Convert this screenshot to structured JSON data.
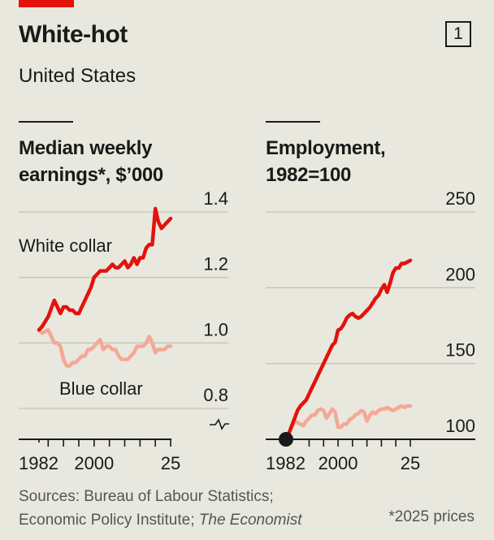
{
  "header": {
    "title": "White-hot",
    "subtitle": "United States",
    "chart_number": "1"
  },
  "footer": {
    "sources_line1": "Sources: Bureau of Labour Statistics;",
    "sources_line2_prefix": "Economic Policy Institute; ",
    "sources_line2_italic": "The Economist",
    "note": "*2025 prices"
  },
  "colors": {
    "accent": "#e3120b",
    "white_collar": "#e3120b",
    "blue_collar": "#f4a895",
    "background": "#e9e8de",
    "gridline": "#c4c3b8",
    "axis": "#1a1a1a"
  },
  "chart_data": [
    {
      "type": "line",
      "title_line1": "Median weekly",
      "title_line2": "earnings*, $’000",
      "xlabel": "",
      "ylabel": "",
      "xlim": [
        1982,
        2025
      ],
      "ylim": [
        0.8,
        1.4
      ],
      "y_axis_broken": true,
      "grid": true,
      "yticks": [
        1.4,
        1.2,
        1.0,
        0.8
      ],
      "ytick_labels": [
        "1.4",
        "1.2",
        "1.0",
        "0.8"
      ],
      "xtick_labels": [
        {
          "year": 1982,
          "label": "1982"
        },
        {
          "year": 2000,
          "label": "2000"
        },
        {
          "year": 2025,
          "label": "25"
        }
      ],
      "xticks": [
        1982,
        1985,
        1990,
        1995,
        2000,
        2005,
        2010,
        2015,
        2020,
        2025
      ],
      "annotations": [
        {
          "text": "White collar",
          "series": "White collar"
        },
        {
          "text": "Blue collar",
          "series": "Blue collar"
        }
      ],
      "series": [
        {
          "name": "White collar",
          "x": [
            1982,
            1983,
            1985,
            1987,
            1988,
            1989,
            1990,
            1991,
            1992,
            1993,
            1994,
            1995,
            1996,
            1997,
            1998,
            1999,
            2000,
            2001,
            2002,
            2003,
            2004,
            2005,
            2006,
            2007,
            2008,
            2009,
            2010,
            2011,
            2012,
            2013,
            2014,
            2015,
            2016,
            2017,
            2018,
            2019,
            2020,
            2021,
            2022,
            2023,
            2024,
            2025
          ],
          "values": [
            1.04,
            1.05,
            1.08,
            1.13,
            1.11,
            1.09,
            1.11,
            1.11,
            1.1,
            1.1,
            1.09,
            1.09,
            1.11,
            1.13,
            1.15,
            1.17,
            1.2,
            1.21,
            1.22,
            1.22,
            1.22,
            1.23,
            1.24,
            1.23,
            1.23,
            1.24,
            1.25,
            1.23,
            1.24,
            1.26,
            1.24,
            1.26,
            1.26,
            1.29,
            1.3,
            1.3,
            1.41,
            1.37,
            1.35,
            1.36,
            1.37,
            1.38
          ]
        },
        {
          "name": "Blue collar",
          "x": [
            1982,
            1983,
            1985,
            1986,
            1987,
            1988,
            1989,
            1990,
            1991,
            1992,
            1993,
            1994,
            1995,
            1996,
            1997,
            1998,
            1999,
            2000,
            2001,
            2002,
            2003,
            2004,
            2005,
            2006,
            2007,
            2008,
            2009,
            2010,
            2011,
            2012,
            2013,
            2014,
            2015,
            2016,
            2017,
            2018,
            2019,
            2020,
            2021,
            2022,
            2023,
            2024,
            2025
          ],
          "values": [
            1.04,
            1.03,
            1.04,
            1.02,
            1.0,
            1.0,
            0.99,
            0.95,
            0.93,
            0.93,
            0.94,
            0.94,
            0.95,
            0.96,
            0.96,
            0.98,
            0.98,
            0.99,
            1.0,
            1.01,
            0.98,
            0.99,
            0.99,
            0.98,
            0.98,
            0.96,
            0.95,
            0.95,
            0.95,
            0.96,
            0.97,
            0.99,
            0.99,
            0.99,
            1.0,
            1.02,
            1.0,
            0.97,
            0.98,
            0.98,
            0.98,
            0.99,
            0.99
          ]
        }
      ]
    },
    {
      "type": "line",
      "title_line1": "Employment,",
      "title_line2": "1982=100",
      "xlabel": "",
      "ylabel": "",
      "xlim": [
        1982,
        2025
      ],
      "ylim": [
        100,
        250
      ],
      "grid": true,
      "yticks": [
        250,
        200,
        150,
        100
      ],
      "ytick_labels": [
        "250",
        "200",
        "150",
        "100"
      ],
      "xtick_labels": [
        {
          "year": 1982,
          "label": "1982"
        },
        {
          "year": 2000,
          "label": "2000"
        },
        {
          "year": 2025,
          "label": "25"
        }
      ],
      "xticks": [
        1982,
        1990,
        1995,
        2000,
        2005,
        2010,
        2015,
        2020,
        2025
      ],
      "base_marker": {
        "year": 1982,
        "value": 100
      },
      "series": [
        {
          "name": "White collar",
          "x": [
            1982,
            1983,
            1984,
            1985,
            1986,
            1987,
            1988,
            1989,
            1990,
            1991,
            1992,
            1993,
            1994,
            1995,
            1996,
            1997,
            1998,
            1999,
            2000,
            2001,
            2002,
            2003,
            2004,
            2005,
            2006,
            2007,
            2008,
            2009,
            2010,
            2011,
            2012,
            2013,
            2014,
            2015,
            2016,
            2017,
            2018,
            2019,
            2020,
            2021,
            2022,
            2023,
            2024,
            2025
          ],
          "values": [
            100,
            104,
            109,
            114,
            119,
            122,
            124,
            126,
            130,
            134,
            138,
            142,
            146,
            150,
            154,
            158,
            162,
            164,
            172,
            173,
            176,
            180,
            182,
            183,
            181,
            180,
            181,
            183,
            185,
            187,
            190,
            193,
            195,
            199,
            202,
            197,
            203,
            210,
            213,
            213,
            216,
            216,
            217,
            218
          ]
        },
        {
          "name": "Blue collar",
          "x": [
            1982,
            1983,
            1984,
            1985,
            1986,
            1987,
            1988,
            1989,
            1990,
            1991,
            1992,
            1993,
            1994,
            1995,
            1996,
            1997,
            1998,
            1999,
            2000,
            2001,
            2002,
            2003,
            2004,
            2005,
            2006,
            2007,
            2008,
            2009,
            2010,
            2011,
            2012,
            2013,
            2014,
            2015,
            2016,
            2017,
            2018,
            2019,
            2020,
            2021,
            2022,
            2023,
            2024,
            2025
          ],
          "values": [
            100,
            104,
            108,
            112,
            111,
            110,
            109,
            112,
            114,
            116,
            116,
            119,
            120,
            119,
            114,
            117,
            120,
            118,
            108,
            108,
            110,
            110,
            113,
            114,
            116,
            117,
            119,
            118,
            112,
            116,
            118,
            117,
            119,
            120,
            120,
            121,
            120,
            119,
            120,
            121,
            122,
            121,
            122,
            122
          ]
        }
      ]
    }
  ]
}
